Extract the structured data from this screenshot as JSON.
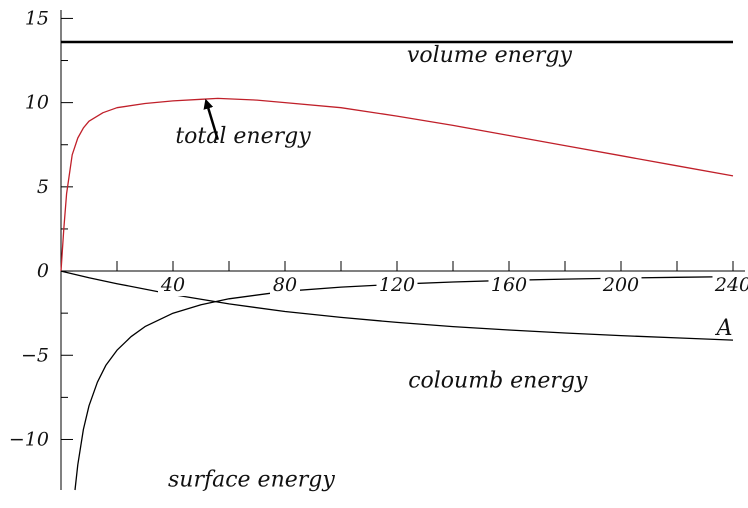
{
  "chart_data": {
    "type": "line",
    "title": "",
    "xlabel": "A",
    "ylabel": "",
    "xlim": [
      0,
      245
    ],
    "ylim": [
      -13,
      15.5
    ],
    "grid": false,
    "x_ticks": [
      40,
      80,
      120,
      160,
      200,
      240
    ],
    "x_tick_labels": [
      "40",
      "80",
      "120",
      "160",
      "200",
      "240"
    ],
    "x_minor_ticks": [
      20,
      60,
      100,
      140,
      180,
      220
    ],
    "y_ticks": [
      -10,
      -5,
      0,
      5,
      10,
      15
    ],
    "y_tick_labels": [
      "−10",
      "−5",
      "0",
      "5",
      "10",
      "15"
    ],
    "y_minor_ticks": [
      -7.5,
      -2.5,
      2.5,
      7.5,
      12.5
    ],
    "series": [
      {
        "key": "volume",
        "color": "#000000",
        "x": [
          0,
          240
        ],
        "y": [
          13.6,
          13.6
        ]
      },
      {
        "key": "total",
        "color": "#c0202a",
        "x": [
          0,
          1,
          2,
          4,
          6,
          8,
          10,
          15,
          20,
          30,
          40,
          50,
          56,
          70,
          80,
          100,
          120,
          140,
          160,
          180,
          200,
          220,
          240
        ],
        "y": [
          0,
          2.5,
          4.6,
          6.9,
          7.9,
          8.5,
          8.9,
          9.4,
          9.7,
          9.95,
          10.1,
          10.2,
          10.25,
          10.15,
          10.0,
          9.7,
          9.2,
          8.65,
          8.05,
          7.45,
          6.85,
          6.25,
          5.65
        ]
      },
      {
        "key": "surface",
        "color": "#000000",
        "x": [
          5,
          6,
          8,
          10,
          13,
          16,
          20,
          25,
          30,
          40,
          50,
          60,
          80,
          100,
          120,
          140,
          160,
          180,
          200,
          220,
          240
        ],
        "y": [
          -13,
          -11.5,
          -9.4,
          -8.0,
          -6.6,
          -5.6,
          -4.7,
          -3.9,
          -3.3,
          -2.5,
          -2.0,
          -1.65,
          -1.2,
          -0.95,
          -0.78,
          -0.65,
          -0.55,
          -0.48,
          -0.42,
          -0.37,
          -0.33
        ]
      },
      {
        "key": "coulomb",
        "color": "#000000",
        "x": [
          0,
          10,
          20,
          40,
          60,
          80,
          100,
          120,
          140,
          160,
          180,
          200,
          220,
          240
        ],
        "y": [
          0,
          -0.4,
          -0.75,
          -1.4,
          -1.95,
          -2.4,
          -2.75,
          -3.05,
          -3.3,
          -3.5,
          -3.68,
          -3.83,
          -3.97,
          -4.1
        ]
      }
    ],
    "annotations": [
      {
        "key": "volume-label",
        "text": "volume energy",
        "x": 153,
        "y": 12.4
      },
      {
        "key": "total-label",
        "text": "total energy",
        "x": 65,
        "y": 7.6
      },
      {
        "key": "coulomb-label",
        "text": "coloumb energy",
        "x": 156,
        "y": -6.9
      },
      {
        "key": "surface-label",
        "text": "surface energy",
        "x": 68,
        "y": -12.8
      }
    ],
    "arrow": {
      "from": [
        56,
        7.8
      ],
      "to": [
        52,
        10.0
      ]
    }
  }
}
